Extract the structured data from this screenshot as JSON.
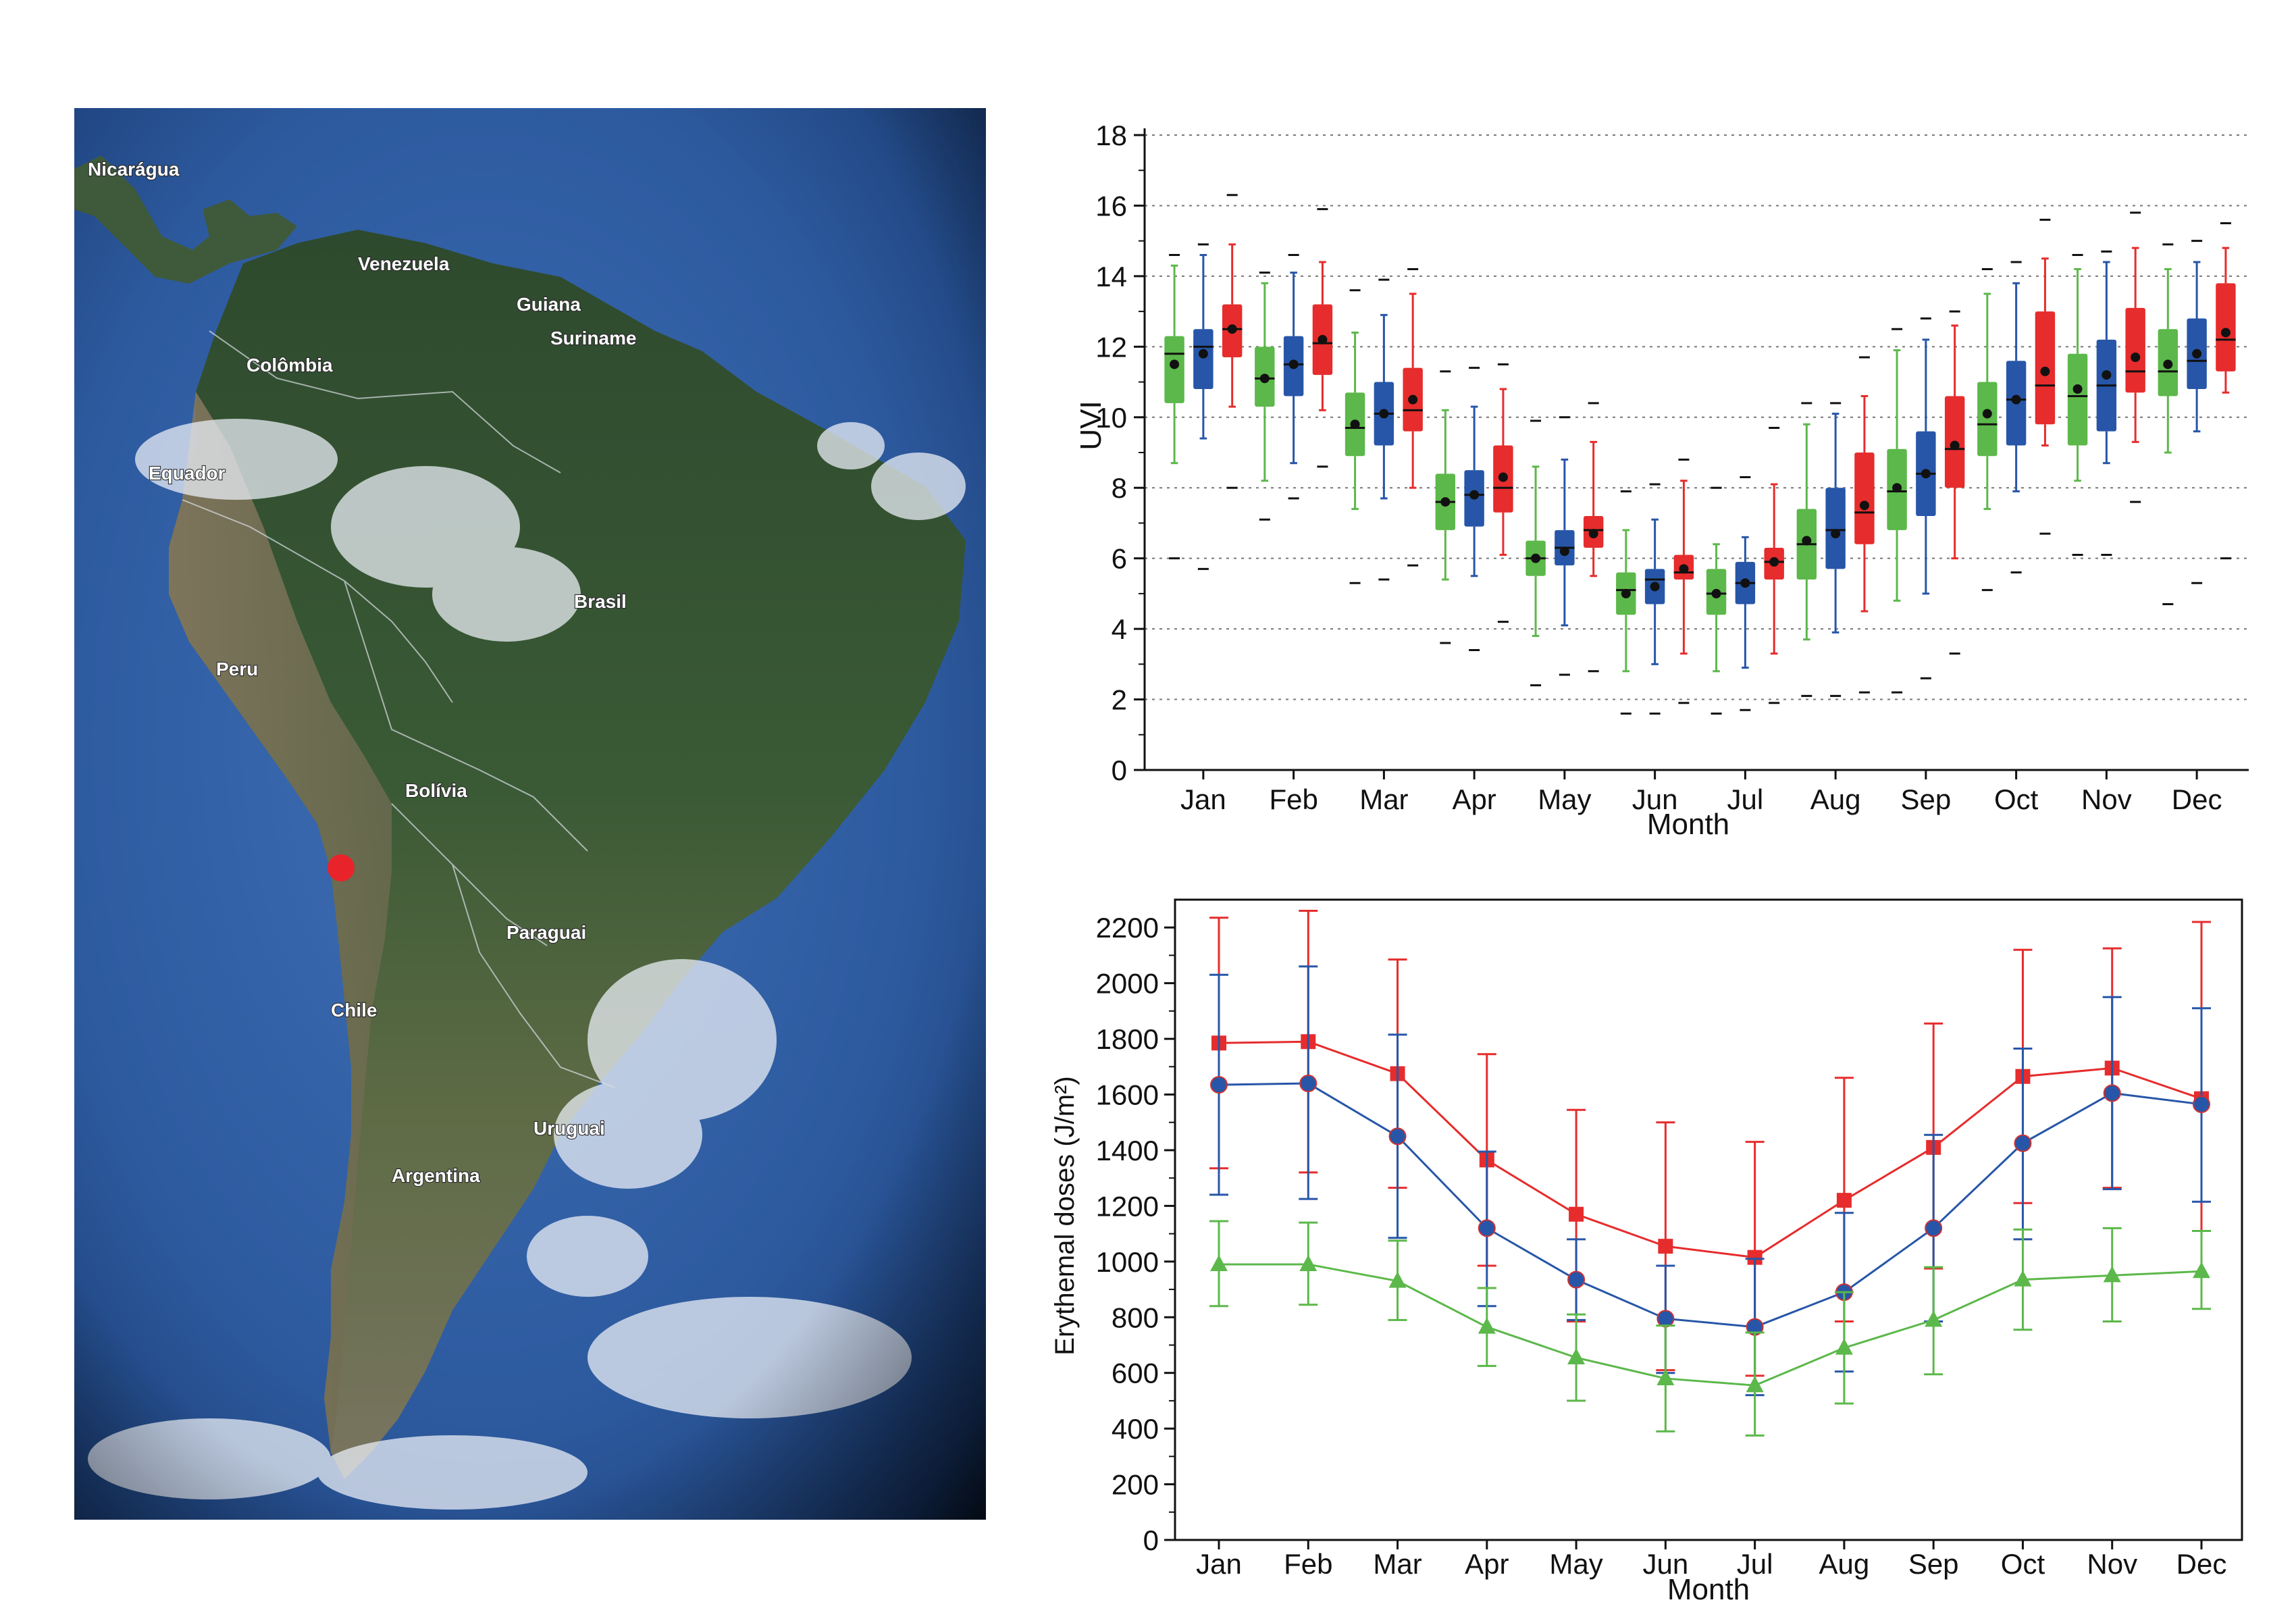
{
  "map": {
    "labels": [
      {
        "name": "nicaragua",
        "text": "Nicarágua"
      },
      {
        "name": "venezuela",
        "text": "Venezuela"
      },
      {
        "name": "guiana",
        "text": "Guiana"
      },
      {
        "name": "suriname",
        "text": "Suriname"
      },
      {
        "name": "colombia",
        "text": "Colômbia"
      },
      {
        "name": "equador",
        "text": "Equador"
      },
      {
        "name": "brasil",
        "text": "Brasil"
      },
      {
        "name": "peru",
        "text": "Peru"
      },
      {
        "name": "bolivia",
        "text": "Bolívia"
      },
      {
        "name": "paraguai",
        "text": "Paraguai"
      },
      {
        "name": "chile",
        "text": "Chile"
      },
      {
        "name": "uruguai",
        "text": "Uruguai"
      },
      {
        "name": "argentina",
        "text": "Argentina"
      }
    ],
    "marker_color": "#e8232a"
  },
  "chart_data": [
    {
      "type": "box",
      "xlabel": "Month",
      "ylabel": "UVI",
      "ylim": [
        0,
        18
      ],
      "yticks": [
        0,
        2,
        4,
        6,
        8,
        10,
        12,
        14,
        16,
        18
      ],
      "grid": "horizontal dotted",
      "categories": [
        "Jan",
        "Feb",
        "Mar",
        "Apr",
        "May",
        "Jun",
        "Jul",
        "Aug",
        "Sep",
        "Oct",
        "Nov",
        "Dec"
      ],
      "colors": [
        "#5cb84a",
        "#2756a8",
        "#e62c2c"
      ],
      "series": [
        {
          "color": "green",
          "boxes": [
            {
              "min": 8.7,
              "q1": 10.4,
              "median": 11.8,
              "q3": 12.3,
              "max": 14.3,
              "mean": 11.5,
              "outlier_low": 6.0,
              "outlier_high": 14.6
            },
            {
              "min": 8.2,
              "q1": 10.3,
              "median": 11.1,
              "q3": 12.0,
              "max": 13.8,
              "mean": 11.1,
              "outlier_low": 7.1,
              "outlier_high": 14.1
            },
            {
              "min": 7.4,
              "q1": 8.9,
              "median": 9.7,
              "q3": 10.7,
              "max": 12.4,
              "mean": 9.8,
              "outlier_low": 5.3,
              "outlier_high": 13.6
            },
            {
              "min": 5.4,
              "q1": 6.8,
              "median": 7.6,
              "q3": 8.4,
              "max": 10.2,
              "mean": 7.6,
              "outlier_low": 3.6,
              "outlier_high": 11.3
            },
            {
              "min": 3.8,
              "q1": 5.5,
              "median": 6.0,
              "q3": 6.5,
              "max": 8.6,
              "mean": 6.0,
              "outlier_low": 2.4,
              "outlier_high": 9.9
            },
            {
              "min": 2.8,
              "q1": 4.4,
              "median": 5.1,
              "q3": 5.6,
              "max": 6.8,
              "mean": 5.0,
              "outlier_low": 1.6,
              "outlier_high": 7.9
            },
            {
              "min": 2.8,
              "q1": 4.4,
              "median": 5.0,
              "q3": 5.7,
              "max": 6.4,
              "mean": 5.0,
              "outlier_low": 1.6,
              "outlier_high": 8.0
            },
            {
              "min": 3.7,
              "q1": 5.4,
              "median": 6.4,
              "q3": 7.4,
              "max": 9.8,
              "mean": 6.5,
              "outlier_low": 2.1,
              "outlier_high": 10.4
            },
            {
              "min": 4.8,
              "q1": 6.8,
              "median": 7.9,
              "q3": 9.1,
              "max": 11.9,
              "mean": 8.0,
              "outlier_low": 2.2,
              "outlier_high": 12.5
            },
            {
              "min": 7.4,
              "q1": 8.9,
              "median": 9.8,
              "q3": 11.0,
              "max": 13.5,
              "mean": 10.1,
              "outlier_low": 5.1,
              "outlier_high": 14.2
            },
            {
              "min": 8.2,
              "q1": 9.2,
              "median": 10.6,
              "q3": 11.8,
              "max": 14.2,
              "mean": 10.8,
              "outlier_low": 6.1,
              "outlier_high": 14.6
            },
            {
              "min": 9.0,
              "q1": 10.6,
              "median": 11.3,
              "q3": 12.5,
              "max": 14.2,
              "mean": 11.5,
              "outlier_low": 4.7,
              "outlier_high": 14.9
            }
          ]
        },
        {
          "color": "blue",
          "boxes": [
            {
              "min": 9.4,
              "q1": 10.8,
              "median": 12.0,
              "q3": 12.5,
              "max": 14.6,
              "mean": 11.8,
              "outlier_low": 5.7,
              "outlier_high": 14.9
            },
            {
              "min": 8.7,
              "q1": 10.6,
              "median": 11.5,
              "q3": 12.3,
              "max": 14.1,
              "mean": 11.5,
              "outlier_low": 7.7,
              "outlier_high": 14.6
            },
            {
              "min": 7.7,
              "q1": 9.2,
              "median": 10.1,
              "q3": 11.0,
              "max": 12.9,
              "mean": 10.1,
              "outlier_low": 5.4,
              "outlier_high": 13.9
            },
            {
              "min": 5.5,
              "q1": 6.9,
              "median": 7.8,
              "q3": 8.5,
              "max": 10.3,
              "mean": 7.8,
              "outlier_low": 3.4,
              "outlier_high": 11.4
            },
            {
              "min": 4.1,
              "q1": 5.8,
              "median": 6.3,
              "q3": 6.8,
              "max": 8.8,
              "mean": 6.2,
              "outlier_low": 2.7,
              "outlier_high": 10.0
            },
            {
              "min": 3.0,
              "q1": 4.7,
              "median": 5.4,
              "q3": 5.7,
              "max": 7.1,
              "mean": 5.2,
              "outlier_low": 1.6,
              "outlier_high": 8.1
            },
            {
              "min": 2.9,
              "q1": 4.7,
              "median": 5.3,
              "q3": 5.9,
              "max": 6.6,
              "mean": 5.3,
              "outlier_low": 1.7,
              "outlier_high": 8.3
            },
            {
              "min": 3.9,
              "q1": 5.7,
              "median": 6.8,
              "q3": 8.0,
              "max": 10.1,
              "mean": 6.7,
              "outlier_low": 2.1,
              "outlier_high": 10.4
            },
            {
              "min": 5.0,
              "q1": 7.2,
              "median": 8.4,
              "q3": 9.6,
              "max": 12.2,
              "mean": 8.4,
              "outlier_low": 2.6,
              "outlier_high": 12.8
            },
            {
              "min": 7.9,
              "q1": 9.2,
              "median": 10.5,
              "q3": 11.6,
              "max": 13.8,
              "mean": 10.5,
              "outlier_low": 5.6,
              "outlier_high": 14.4
            },
            {
              "min": 8.7,
              "q1": 9.6,
              "median": 10.9,
              "q3": 12.2,
              "max": 14.4,
              "mean": 11.2,
              "outlier_low": 6.1,
              "outlier_high": 14.7
            },
            {
              "min": 9.6,
              "q1": 10.8,
              "median": 11.6,
              "q3": 12.8,
              "max": 14.4,
              "mean": 11.8,
              "outlier_low": 5.3,
              "outlier_high": 15.0
            }
          ]
        },
        {
          "color": "red",
          "boxes": [
            {
              "min": 10.3,
              "q1": 11.7,
              "median": 12.5,
              "q3": 13.2,
              "max": 14.9,
              "mean": 12.5,
              "outlier_low": 8.0,
              "outlier_high": 16.3
            },
            {
              "min": 10.2,
              "q1": 11.2,
              "median": 12.1,
              "q3": 13.2,
              "max": 14.4,
              "mean": 12.2,
              "outlier_low": 8.6,
              "outlier_high": 15.9
            },
            {
              "min": 8.0,
              "q1": 9.6,
              "median": 10.2,
              "q3": 11.4,
              "max": 13.5,
              "mean": 10.5,
              "outlier_low": 5.8,
              "outlier_high": 14.2
            },
            {
              "min": 6.1,
              "q1": 7.3,
              "median": 8.0,
              "q3": 9.2,
              "max": 10.8,
              "mean": 8.3,
              "outlier_low": 4.2,
              "outlier_high": 11.5
            },
            {
              "min": 5.5,
              "q1": 6.3,
              "median": 6.8,
              "q3": 7.2,
              "max": 9.3,
              "mean": 6.7,
              "outlier_low": 2.8,
              "outlier_high": 10.4
            },
            {
              "min": 3.3,
              "q1": 5.4,
              "median": 5.6,
              "q3": 6.1,
              "max": 8.2,
              "mean": 5.7,
              "outlier_low": 1.9,
              "outlier_high": 8.8
            },
            {
              "min": 3.3,
              "q1": 5.4,
              "median": 5.9,
              "q3": 6.3,
              "max": 8.1,
              "mean": 5.9,
              "outlier_low": 1.9,
              "outlier_high": 9.7
            },
            {
              "min": 4.5,
              "q1": 6.4,
              "median": 7.3,
              "q3": 9.0,
              "max": 10.6,
              "mean": 7.5,
              "outlier_low": 2.2,
              "outlier_high": 11.7
            },
            {
              "min": 6.0,
              "q1": 8.0,
              "median": 9.1,
              "q3": 10.6,
              "max": 12.6,
              "mean": 9.2,
              "outlier_low": 3.3,
              "outlier_high": 13.0
            },
            {
              "min": 9.2,
              "q1": 9.8,
              "median": 10.9,
              "q3": 13.0,
              "max": 14.5,
              "mean": 11.3,
              "outlier_low": 6.7,
              "outlier_high": 15.6
            },
            {
              "min": 9.3,
              "q1": 10.7,
              "median": 11.3,
              "q3": 13.1,
              "max": 14.8,
              "mean": 11.7,
              "outlier_low": 7.6,
              "outlier_high": 15.8
            },
            {
              "min": 10.7,
              "q1": 11.3,
              "median": 12.2,
              "q3": 13.8,
              "max": 14.8,
              "mean": 12.4,
              "outlier_low": 6.0,
              "outlier_high": 15.5
            }
          ]
        }
      ]
    },
    {
      "type": "line",
      "xlabel": "Month",
      "ylabel": "Erythemal doses (J/m²)",
      "ylim": [
        0,
        2300
      ],
      "yticks": [
        0,
        200,
        400,
        600,
        800,
        1000,
        1200,
        1400,
        1600,
        1800,
        2000,
        2200
      ],
      "grid": "none",
      "categories": [
        "Jan",
        "Feb",
        "Mar",
        "Apr",
        "May",
        "Jun",
        "Jul",
        "Aug",
        "Sep",
        "Oct",
        "Nov",
        "Dec"
      ],
      "series": [
        {
          "color": "#e62c2c",
          "marker": "square",
          "values": [
            1785,
            1790,
            1675,
            1365,
            1170,
            1055,
            1015,
            1220,
            1410,
            1665,
            1695,
            1585
          ],
          "err_low": [
            1335,
            1320,
            1265,
            985,
            785,
            610,
            590,
            785,
            975,
            1210,
            1265,
            1110
          ],
          "err_high": [
            2235,
            2260,
            2085,
            1745,
            1545,
            1500,
            1430,
            1660,
            1855,
            2120,
            2125,
            2220
          ]
        },
        {
          "color": "#2756a8",
          "marker": "circle",
          "values": [
            1635,
            1640,
            1450,
            1120,
            935,
            795,
            765,
            890,
            1120,
            1425,
            1605,
            1565
          ],
          "err_low": [
            1240,
            1225,
            1085,
            840,
            790,
            600,
            520,
            605,
            785,
            1080,
            1260,
            1215
          ],
          "err_high": [
            2030,
            2060,
            1815,
            1395,
            1080,
            985,
            1010,
            1175,
            1455,
            1765,
            1950,
            1910
          ]
        },
        {
          "color": "#5cb84a",
          "marker": "triangle",
          "values": [
            990,
            990,
            930,
            765,
            655,
            580,
            555,
            690,
            790,
            935,
            950,
            965
          ],
          "err_low": [
            840,
            845,
            790,
            625,
            500,
            390,
            375,
            490,
            595,
            755,
            785,
            830
          ],
          "err_high": [
            1145,
            1140,
            1075,
            905,
            810,
            770,
            745,
            890,
            980,
            1115,
            1120,
            1110
          ]
        }
      ]
    }
  ]
}
